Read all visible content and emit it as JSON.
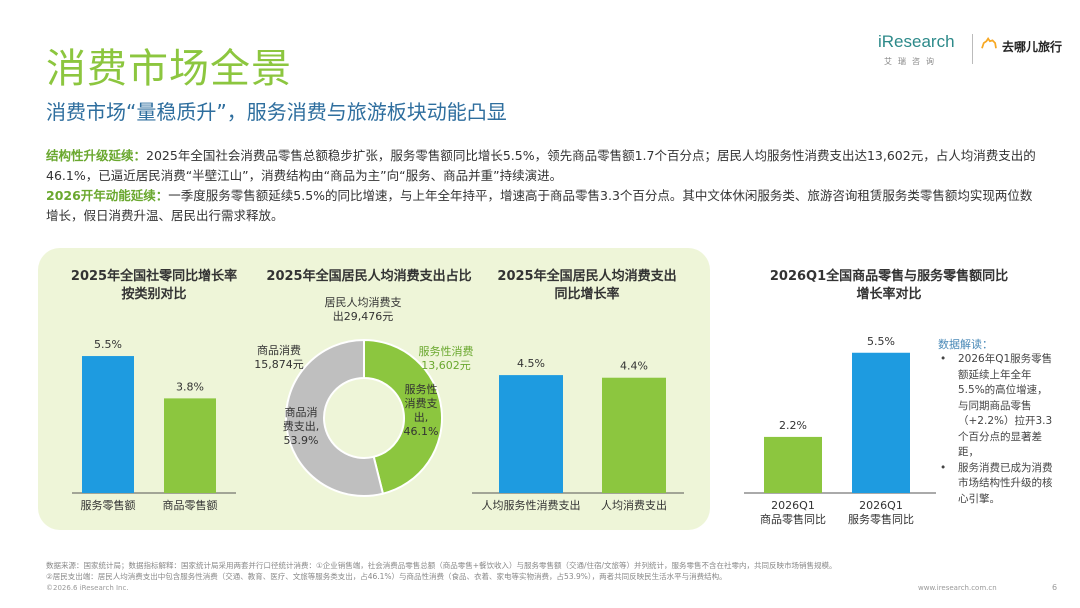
{
  "header": {
    "title": "消费市场全景",
    "subtitle": "消费市场“量稳质升”，服务消费与旅游板块动能凸显"
  },
  "logos": {
    "iresearch": "iResearch",
    "iresearch_sub": "艾瑞咨询",
    "qunar": "去哪儿旅行"
  },
  "paragraphs": [
    {
      "label": "结构性升级延续：",
      "text": "2025年全国社会消费品零售总额稳步扩张，服务零售额同比增长5.5%，领先商品零售额1.7个百分点；居民人均服务性消费支出达13,602元，占人均消费支出的46.1%，已逼近居民消费“半壁江山”，消费结构由“商品为主”向“服务、商品并重”持续演进。"
    },
    {
      "label": "2026开年动能延续：",
      "text": "一季度服务零售额延续5.5%的同比增速，与上年全年持平，增速高于商品零售3.3个百分点。其中文体休闲服务类、旅游咨询租赁服务类零售额均实现两位数增长，假日消费升温、居民出行需求释放。"
    }
  ],
  "chart_data": [
    {
      "type": "bar",
      "title": "2025年全国社零同比增长率按类别对比",
      "categories": [
        "服务零售额",
        "商品零售额"
      ],
      "values": [
        5.5,
        3.8
      ],
      "value_labels": [
        "5.5%",
        "3.8%"
      ],
      "colors": [
        "#1e9be0",
        "#8cc63f"
      ]
    },
    {
      "type": "pie",
      "title": "2025年全国居民人均消费支出占比",
      "total_label": "居民人均消费支\n出29,476元",
      "slices": [
        {
          "name": "服务性消费",
          "value": 46.1,
          "amount": "13,602元",
          "inner_label": "服务性\n消费支\n出,\n46.1%",
          "color": "#8cc63f"
        },
        {
          "name": "商品消费",
          "value": 53.9,
          "amount": "15,874元",
          "inner_label": "商品消\n费支出,\n53.9%",
          "color": "#bfbfbf"
        }
      ]
    },
    {
      "type": "bar",
      "title": "2025年全国居民人均消费支出同比增长率",
      "categories": [
        "人均服务性消费支出",
        "人均消费支出"
      ],
      "values": [
        4.5,
        4.4
      ],
      "value_labels": [
        "4.5%",
        "4.4%"
      ],
      "colors": [
        "#1e9be0",
        "#8cc63f"
      ]
    },
    {
      "type": "bar",
      "title": "2026Q1全国商品零售与服务零售额同比增长率对比",
      "categories": [
        "2026Q1\n商品零售同比",
        "2026Q1\n服务零售同比"
      ],
      "values": [
        2.2,
        5.5
      ],
      "value_labels": [
        "2.2%",
        "5.5%"
      ],
      "colors": [
        "#8cc63f",
        "#1e9be0"
      ]
    }
  ],
  "chart_titles": {
    "c1": [
      "2025年全国社零同比增长率",
      "按类别对比"
    ],
    "c2": [
      "2025年全国居民人均消费支出占比"
    ],
    "c3": [
      "2025年全国居民人均消费支出",
      "同比增长率"
    ],
    "c4": [
      "2026Q1全国商品零售与服务零售额同比",
      "增长率对比"
    ]
  },
  "note": {
    "title": "数据解读：",
    "items": [
      "2026年Q1服务零售额延续上年全年5.5%的高位增速，与同期商品零售（+2.2%）拉开3.3个百分点的显著差距，",
      "服务消费已成为消费市场结构性升级的核心引擎。"
    ]
  },
  "footer": {
    "source1": "数据来源：国家统计局；数据指标解释：国家统计局采用两套并行口径统计消费：①企业销售端，社会消费品零售总额（商品零售+餐饮收入）与服务零售额（交通/住宿/文旅等）并列统计，服务零售不含在社零内，共同反映市场销售规模。",
    "source2": "②居民支出端：居民人均消费支出中包含服务性消费（交通、教育、医疗、文旅等服务类支出，占46.1%）与商品性消费（食品、衣着、家电等实物消费，占53.9%），两者共同反映民生活水平与消费结构。",
    "copyright": "©2026.6 iResearch Inc.",
    "site": "www.iresearch.com.cn",
    "page": "6"
  }
}
